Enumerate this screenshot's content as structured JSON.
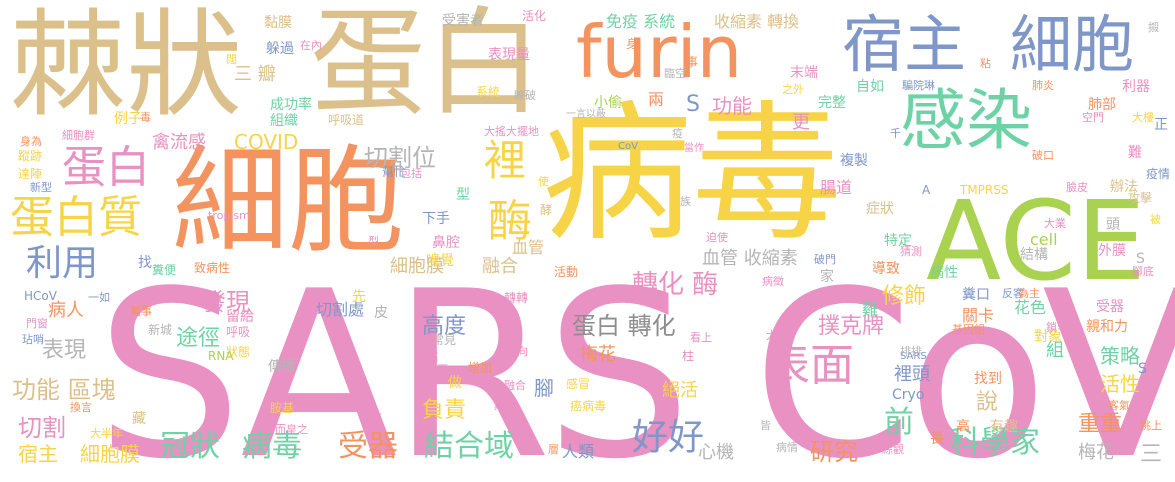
{
  "palette": {
    "pink": "#e891c2",
    "yellow": "#f7d447",
    "tan": "#dcc08b",
    "orange": "#f3935f",
    "green": "#6fd2a6",
    "slate": "#7f97c8",
    "lime": "#a8d24f",
    "gray": "#b5b5b5",
    "dgray": "#8e8e8e",
    "salmon": "#f0a07a"
  },
  "words": [
    {
      "text": "SARS CoV",
      "color": "pink"
    },
    {
      "text": "病毒",
      "color": "yellow"
    },
    {
      "text": "棘狀",
      "color": "tan"
    },
    {
      "text": "蛋白",
      "color": "tan"
    },
    {
      "text": "細胞",
      "color": "orange"
    },
    {
      "text": "furin",
      "color": "orange"
    },
    {
      "text": "宿主",
      "color": "slate"
    },
    {
      "text": "細胞",
      "color": "slate"
    },
    {
      "text": "感染",
      "color": "green"
    },
    {
      "text": "ACE",
      "color": "lime"
    },
    {
      "text": "蛋白質",
      "color": "yellow"
    },
    {
      "text": "蛋白",
      "color": "pink"
    },
    {
      "text": "利用",
      "color": "slate"
    },
    {
      "text": "表面",
      "color": "pink"
    },
    {
      "text": "好好",
      "color": "slate"
    },
    {
      "text": "酶",
      "color": "yellow"
    },
    {
      "text": "裡",
      "color": "yellow"
    },
    {
      "text": "冠狀",
      "color": "green"
    },
    {
      "text": "病毒",
      "color": "green"
    },
    {
      "text": "受器",
      "color": "orange"
    },
    {
      "text": "結合域",
      "color": "green"
    },
    {
      "text": "科學家",
      "color": "green"
    },
    {
      "text": "蛋白 轉化",
      "color": "dgray"
    },
    {
      "text": "轉化 酶",
      "color": "pink"
    },
    {
      "text": "切割位",
      "color": "gray"
    },
    {
      "text": "功能 區塊",
      "color": "tan"
    },
    {
      "text": "細胞膜",
      "color": "yellow"
    },
    {
      "text": "宿主",
      "color": "yellow"
    },
    {
      "text": "切割",
      "color": "pink"
    },
    {
      "text": "前",
      "color": "green"
    },
    {
      "text": "研究",
      "color": "orange"
    },
    {
      "text": "發現",
      "color": "pink"
    },
    {
      "text": "表現",
      "color": "gray"
    },
    {
      "text": "病人",
      "color": "orange"
    },
    {
      "text": "途徑",
      "color": "green"
    },
    {
      "text": "高度",
      "color": "slate"
    },
    {
      "text": "負責",
      "color": "yellow"
    },
    {
      "text": "修飾",
      "color": "yellow"
    },
    {
      "text": "撲克牌",
      "color": "pink"
    },
    {
      "text": "梅花",
      "color": "orange"
    },
    {
      "text": "梅花",
      "color": "gray"
    },
    {
      "text": "重重",
      "color": "orange"
    },
    {
      "text": "三",
      "color": "gray"
    },
    {
      "text": "策略",
      "color": "green"
    },
    {
      "text": "活性",
      "color": "yellow"
    },
    {
      "text": "說",
      "color": "tan"
    },
    {
      "text": "COVID",
      "color": "yellow"
    },
    {
      "text": "禽流感",
      "color": "pink"
    },
    {
      "text": "免疫 系統",
      "color": "green"
    },
    {
      "text": "收縮素 轉換",
      "color": "tan"
    },
    {
      "text": "功能",
      "color": "pink"
    },
    {
      "text": "S",
      "color": "slate"
    },
    {
      "text": "小偷",
      "color": "lime"
    },
    {
      "text": "兩",
      "color": "orange"
    },
    {
      "text": "更",
      "color": "pink"
    },
    {
      "text": "血管",
      "color": "tan"
    },
    {
      "text": "血管 收縮素",
      "color": "gray"
    },
    {
      "text": "腸道",
      "color": "pink"
    },
    {
      "text": "症狀",
      "color": "tan"
    },
    {
      "text": "複製",
      "color": "slate"
    },
    {
      "text": "細胞膜",
      "color": "tan"
    },
    {
      "text": "融合",
      "color": "tan"
    },
    {
      "text": "切割處",
      "color": "slate"
    },
    {
      "text": "心機",
      "color": "gray"
    },
    {
      "text": "人類",
      "color": "slate"
    },
    {
      "text": "腳",
      "color": "slate"
    },
    {
      "text": "絕活",
      "color": "yellow"
    },
    {
      "text": "裡頭",
      "color": "slate"
    },
    {
      "text": "Cryo",
      "color": "slate"
    },
    {
      "text": "找到",
      "color": "orange"
    },
    {
      "text": "組",
      "color": "green"
    },
    {
      "text": "三 瓣",
      "color": "tan"
    },
    {
      "text": "成功率",
      "color": "green"
    },
    {
      "text": "組織",
      "color": "green"
    },
    {
      "text": "躲過",
      "color": "slate"
    },
    {
      "text": "黏膜",
      "color": "tan"
    },
    {
      "text": "受害者",
      "color": "gray"
    },
    {
      "text": "活化",
      "color": "pink"
    },
    {
      "text": "表現量",
      "color": "pink"
    },
    {
      "text": "系統",
      "color": "yellow"
    },
    {
      "text": "末端",
      "color": "pink"
    },
    {
      "text": "自如",
      "color": "green"
    },
    {
      "text": "完整",
      "color": "green"
    },
    {
      "text": "肺部",
      "color": "orange"
    },
    {
      "text": "利器",
      "color": "pink"
    },
    {
      "text": "cell",
      "color": "lime"
    },
    {
      "text": "結構",
      "color": "gray"
    },
    {
      "text": "外膜",
      "color": "pink"
    },
    {
      "text": "親和力",
      "color": "orange"
    },
    {
      "text": "受器",
      "color": "pink"
    },
    {
      "text": "關卡",
      "color": "orange"
    },
    {
      "text": "對象",
      "color": "yellow"
    },
    {
      "text": "花色",
      "color": "green"
    },
    {
      "text": "有趣",
      "color": "tan"
    },
    {
      "text": "高",
      "color": "orange"
    },
    {
      "text": "長",
      "color": "orange"
    },
    {
      "text": "TMPRSS",
      "color": "yellow"
    },
    {
      "text": "攻擊",
      "color": "tan"
    },
    {
      "text": "疫情",
      "color": "slate"
    },
    {
      "text": "辦法",
      "color": "tan"
    },
    {
      "text": "難",
      "color": "pink"
    },
    {
      "text": "正",
      "color": "slate"
    },
    {
      "text": "例子",
      "color": "yellow"
    },
    {
      "text": "呼吸道",
      "color": "tan"
    },
    {
      "text": "下手",
      "color": "slate"
    },
    {
      "text": "型",
      "color": "green"
    },
    {
      "text": "嗅覺",
      "color": "yellow"
    },
    {
      "text": "鼻腔",
      "color": "pink"
    },
    {
      "text": "傳播",
      "color": "gray"
    },
    {
      "text": "常見",
      "color": "gray"
    },
    {
      "text": "增加",
      "color": "orange"
    },
    {
      "text": "感冒",
      "color": "yellow"
    },
    {
      "text": "癌病毒",
      "color": "yellow"
    },
    {
      "text": "留給",
      "color": "pink"
    },
    {
      "text": "呼吸",
      "color": "pink"
    },
    {
      "text": "狀態",
      "color": "yellow"
    },
    {
      "text": "皮",
      "color": "gray"
    },
    {
      "text": "先",
      "color": "yellow"
    },
    {
      "text": "胺基",
      "color": "yellow"
    },
    {
      "text": "做",
      "color": "yellow"
    },
    {
      "text": "找",
      "color": "slate"
    },
    {
      "text": "致病性",
      "color": "orange"
    },
    {
      "text": "糞便",
      "color": "green"
    },
    {
      "text": "RNA",
      "color": "lime"
    },
    {
      "text": "導致",
      "color": "orange"
    },
    {
      "text": "特定",
      "color": "green"
    },
    {
      "text": "病性",
      "color": "green"
    },
    {
      "text": "家",
      "color": "gray"
    },
    {
      "text": "雞",
      "color": "green"
    },
    {
      "text": "糞口",
      "color": "slate"
    },
    {
      "text": "HCoV",
      "color": "slate"
    },
    {
      "text": "藏",
      "color": "tan"
    },
    {
      "text": "蹤跡",
      "color": "yellow"
    },
    {
      "text": "達陣",
      "color": "yellow"
    },
    {
      "text": "新城",
      "color": "gray"
    },
    {
      "text": "轉轉",
      "color": "pink"
    },
    {
      "text": "活動",
      "color": "orange"
    },
    {
      "text": "柱",
      "color": "pink"
    },
    {
      "text": "當作",
      "color": "pink"
    },
    {
      "text": "CoV",
      "color": "slate"
    },
    {
      "text": "SARS",
      "color": "slate"
    },
    {
      "text": "事",
      "color": "orange"
    },
    {
      "text": "身",
      "color": "orange"
    },
    {
      "text": "A",
      "color": "slate"
    },
    {
      "text": "瞭破",
      "color": "gray"
    },
    {
      "text": "一言以蔽",
      "color": "gray"
    },
    {
      "text": "大搖大擺地",
      "color": "pink"
    },
    {
      "text": "空門",
      "color": "pink"
    },
    {
      "text": "大樓",
      "color": "yellow"
    },
    {
      "text": "tropism",
      "color": "pink"
    },
    {
      "text": "包括",
      "color": "pink"
    },
    {
      "text": "幫忙",
      "color": "slate"
    },
    {
      "text": "新型",
      "color": "slate"
    },
    {
      "text": "身為",
      "color": "orange"
    },
    {
      "text": "一如",
      "color": "slate"
    },
    {
      "text": "萬事",
      "color": "orange"
    },
    {
      "text": "門窗",
      "color": "pink"
    },
    {
      "text": "玷哨",
      "color": "slate"
    },
    {
      "text": "換言",
      "color": "orange"
    },
    {
      "text": "大半年",
      "color": "yellow"
    },
    {
      "text": "降",
      "color": "pink"
    },
    {
      "text": "堂而皇之",
      "color": "pink"
    },
    {
      "text": "專挑",
      "color": "pink"
    },
    {
      "text": "欺負",
      "color": "pink"
    },
    {
      "text": "融合",
      "color": "pink"
    },
    {
      "text": "趨向",
      "color": "pink"
    },
    {
      "text": "假面",
      "color": "pink"
    },
    {
      "text": "在內",
      "color": "pink"
    },
    {
      "text": "闊",
      "color": "yellow"
    },
    {
      "text": "毒",
      "color": "orange"
    },
    {
      "text": "細胞群",
      "color": "pink"
    },
    {
      "text": "酵",
      "color": "tan"
    },
    {
      "text": "迫使",
      "color": "pink"
    },
    {
      "text": "破門",
      "color": "slate"
    },
    {
      "text": "看上",
      "color": "pink"
    },
    {
      "text": "病徵",
      "color": "pink"
    },
    {
      "text": "大搖",
      "color": "pink"
    },
    {
      "text": "排排",
      "color": "gray"
    },
    {
      "text": "鎖毛狀",
      "color": "pink"
    },
    {
      "text": "基因組",
      "color": "orange"
    },
    {
      "text": "反客",
      "color": "slate"
    },
    {
      "text": "為主",
      "color": "orange"
    },
    {
      "text": "客氣",
      "color": "orange"
    },
    {
      "text": "挑上",
      "color": "orange"
    },
    {
      "text": "綜觀",
      "color": "pink"
    },
    {
      "text": "病情",
      "color": "gray"
    },
    {
      "text": "皆",
      "color": "gray"
    },
    {
      "text": "層",
      "color": "orange"
    },
    {
      "text": "猜測",
      "color": "pink"
    },
    {
      "text": "臉皮",
      "color": "pink"
    },
    {
      "text": "大業",
      "color": "pink"
    },
    {
      "text": "頭",
      "color": "gray"
    },
    {
      "text": "被",
      "color": "yellow"
    },
    {
      "text": "腳底",
      "color": "pink"
    },
    {
      "text": "千",
      "color": "slate"
    },
    {
      "text": "臨空",
      "color": "gray"
    },
    {
      "text": "之外",
      "color": "yellow"
    },
    {
      "text": "騙院琳",
      "color": "slate"
    },
    {
      "text": "肺炎",
      "color": "orange"
    },
    {
      "text": "破口",
      "color": "orange"
    },
    {
      "text": "族",
      "color": "gray"
    },
    {
      "text": "使",
      "color": "yellow"
    },
    {
      "text": "疫",
      "color": "gray"
    },
    {
      "text": "滿滿",
      "color": "pink"
    },
    {
      "text": "型",
      "color": "pink"
    },
    {
      "text": "S",
      "color": "gray"
    },
    {
      "text": "S",
      "color": "slate"
    },
    {
      "text": "功能",
      "color": "yellow"
    },
    {
      "text": "摋",
      "color": "gray"
    },
    {
      "text": "粘",
      "color": "orange"
    }
  ]
}
